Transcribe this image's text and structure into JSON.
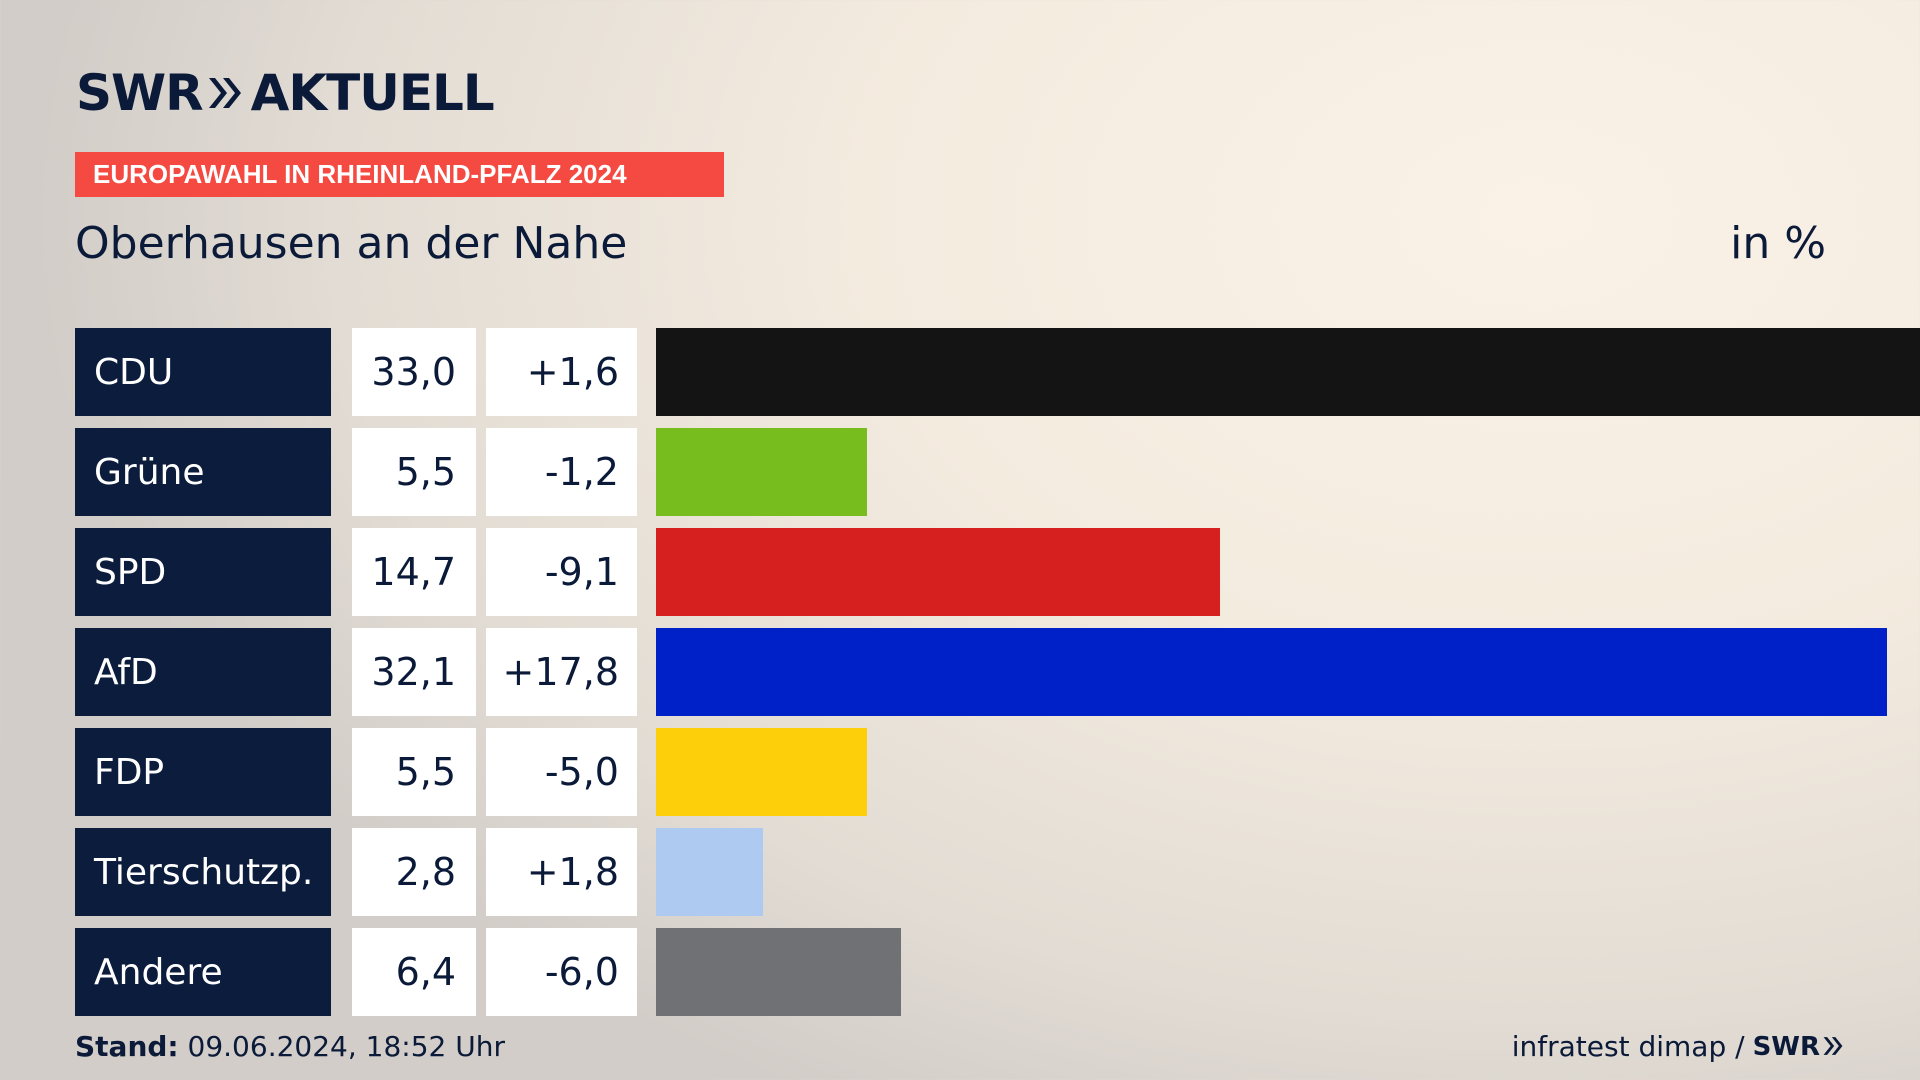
{
  "header": {
    "brand_left": "SWR",
    "brand_right": "AKTUELL",
    "badge": "EUROPAWAHL IN RHEINLAND-PFALZ 2024",
    "subtitle": "Oberhausen an der Nahe",
    "unit": "in %"
  },
  "footer": {
    "stand_label": "Stand:",
    "stand_value": "09.06.2024, 18:52 Uhr",
    "source": "infratest dimap /",
    "source_brand": "SWR"
  },
  "colors": {
    "navy": "#0c1c3c",
    "badge": "#f54a41"
  },
  "chart_data": {
    "type": "bar",
    "orientation": "horizontal",
    "title": "Oberhausen an der Nahe",
    "unit": "in %",
    "xlim": [
      0,
      33.0
    ],
    "categories": [
      "CDU",
      "Grüne",
      "SPD",
      "AfD",
      "FDP",
      "Tierschutzp.",
      "Andere"
    ],
    "values": [
      33.0,
      5.5,
      14.7,
      32.1,
      5.5,
      2.8,
      6.4
    ],
    "values_label": [
      "33,0",
      "5,5",
      "14,7",
      "32,1",
      "5,5",
      "2,8",
      "6,4"
    ],
    "changes_label": [
      "+1,6",
      "-1,2",
      "-9,1",
      "+17,8",
      "-5,0",
      "+1,8",
      "-6,0"
    ],
    "bar_colors": [
      "#141414",
      "#78bd1e",
      "#d61f1f",
      "#0020c8",
      "#fdce0a",
      "#aecaf0",
      "#707174"
    ]
  }
}
